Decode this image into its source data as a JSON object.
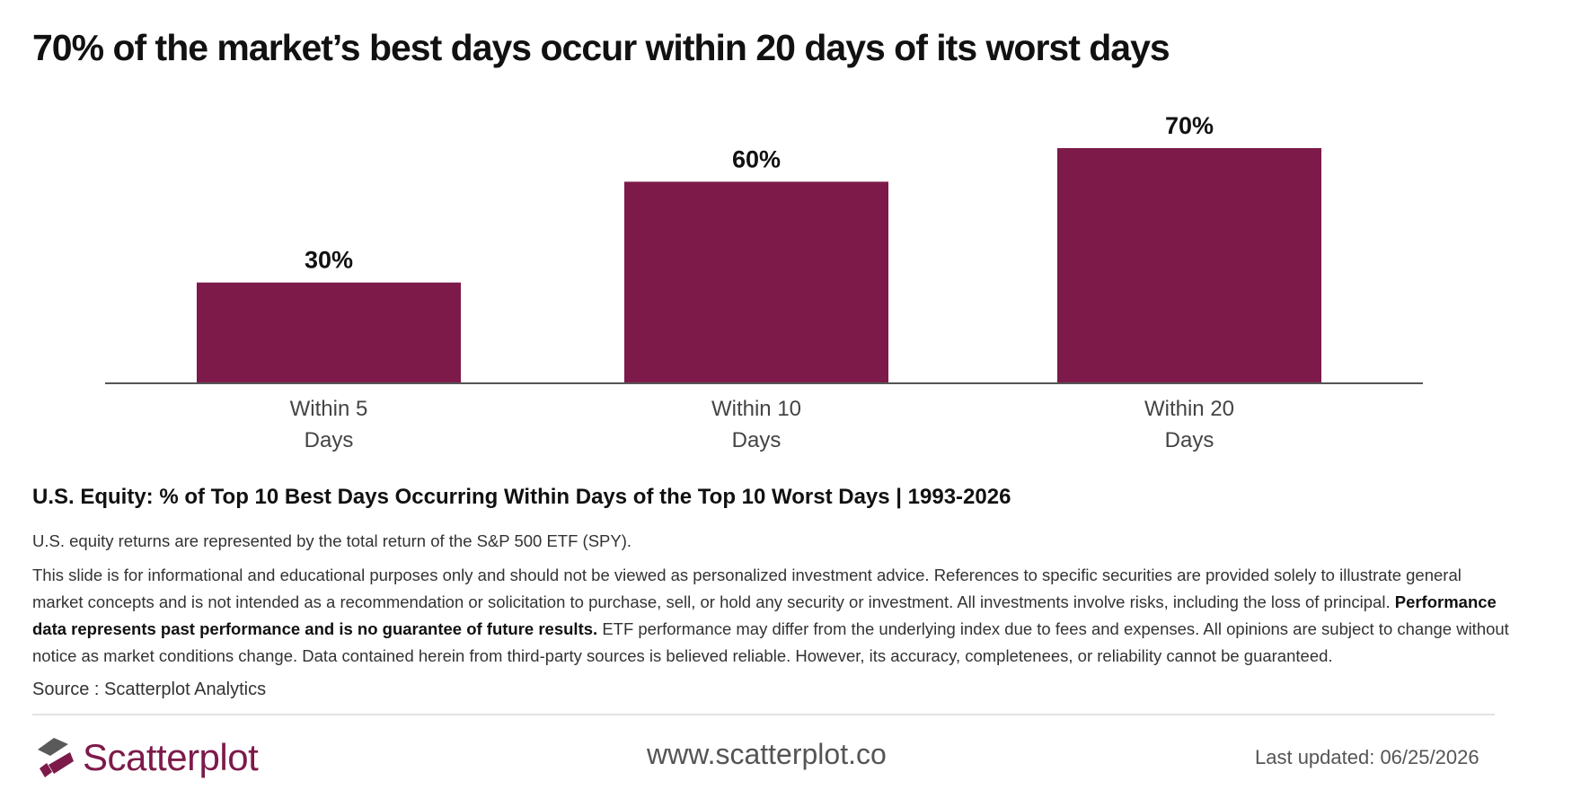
{
  "title": "70% of the market’s best days occur within 20 days of its worst days",
  "colors": {
    "bar": "#7d1a4a",
    "axis": "#555555",
    "logo_dark": "#5a5a5a",
    "logo_accent": "#7d1a4a"
  },
  "chart_data": {
    "type": "bar",
    "categories": [
      [
        "Within 5",
        "Days"
      ],
      [
        "Within 10",
        "Days"
      ],
      [
        "Within 20",
        "Days"
      ]
    ],
    "values": [
      30,
      60,
      70
    ],
    "data_labels": [
      "30%",
      "60%",
      "70%"
    ],
    "unit": "%",
    "title": "",
    "xlabel": "",
    "ylabel": "",
    "ylim": [
      0,
      70
    ],
    "grid": false,
    "legend": "none"
  },
  "subtitle": "U.S. Equity: % of Top 10 Best Days Occurring Within Days of the Top 10 Worst Days | 1993-2026",
  "note": "U.S. equity returns are represented by the total return of the S&P 500 ETF (SPY).",
  "disclaimer": {
    "part1": "This slide is for informational and educational purposes only and should not be viewed as personalized investment advice. References to specific securities are provided solely to illustrate general market concepts and is not intended as a recommendation or solicitation to purchase, sell, or hold any security or investment. All investments involve risks, including the loss of principal.",
    "bold": "Performance data represents past performance and is no guarantee of future results.",
    "part2": "ETF performance may differ from the underlying index due to fees and expenses. All opinions are subject to change without notice as market conditions change. Data contained herein from third-party sources is believed reliable. However, its accuracy, completenees, or reliability cannot be guaranteed."
  },
  "source": "Source : Scatterplot Analytics",
  "footer": {
    "logo_text": "Scatterplot",
    "website": "www.scatterplot.co",
    "updated": "Last updated: 06/25/2026"
  }
}
